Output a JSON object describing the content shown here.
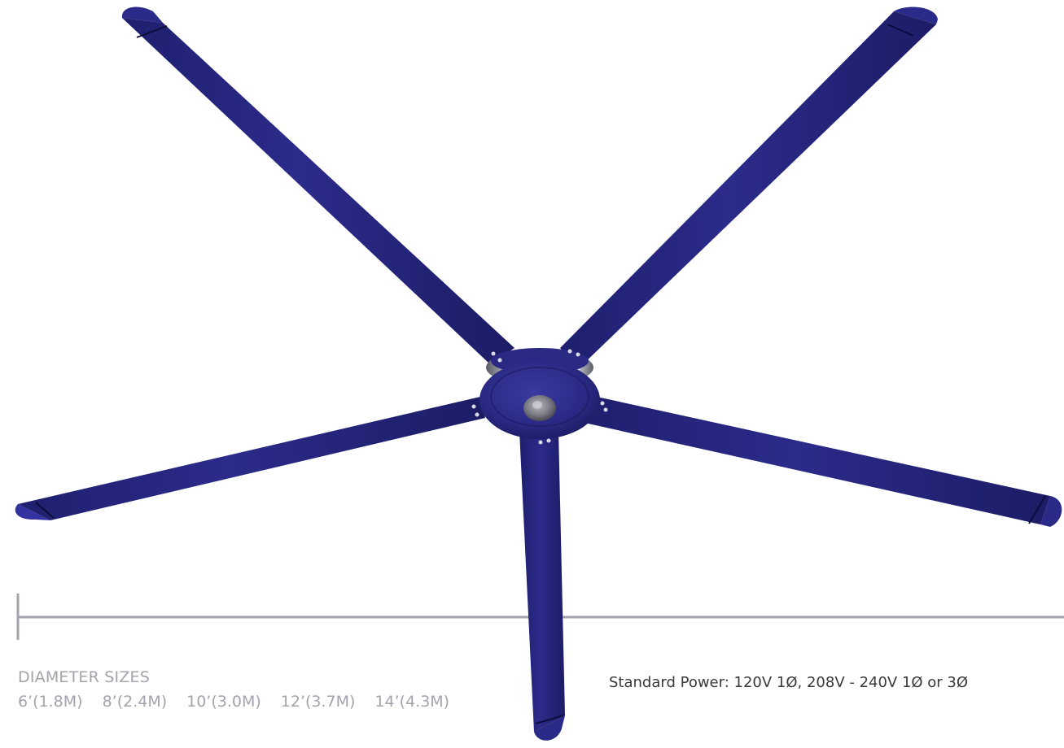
{
  "diameter": {
    "heading": "DIAMETER SIZES",
    "sizes": [
      "6’(1.8M)",
      "8’(2.4M)",
      "10’(3.0M)",
      "12’(3.7M)",
      "14’(4.3M)"
    ]
  },
  "power": {
    "text": "Standard Power:  120V 1Ø, 208V - 240V 1Ø or 3Ø"
  },
  "colors": {
    "blade": "#27277d",
    "ruler": "#a3a3ad",
    "label_text": "#a3a3ad",
    "power_text": "#3a3a3d"
  },
  "icons": {
    "fan": "ceiling-fan-five-blade"
  }
}
